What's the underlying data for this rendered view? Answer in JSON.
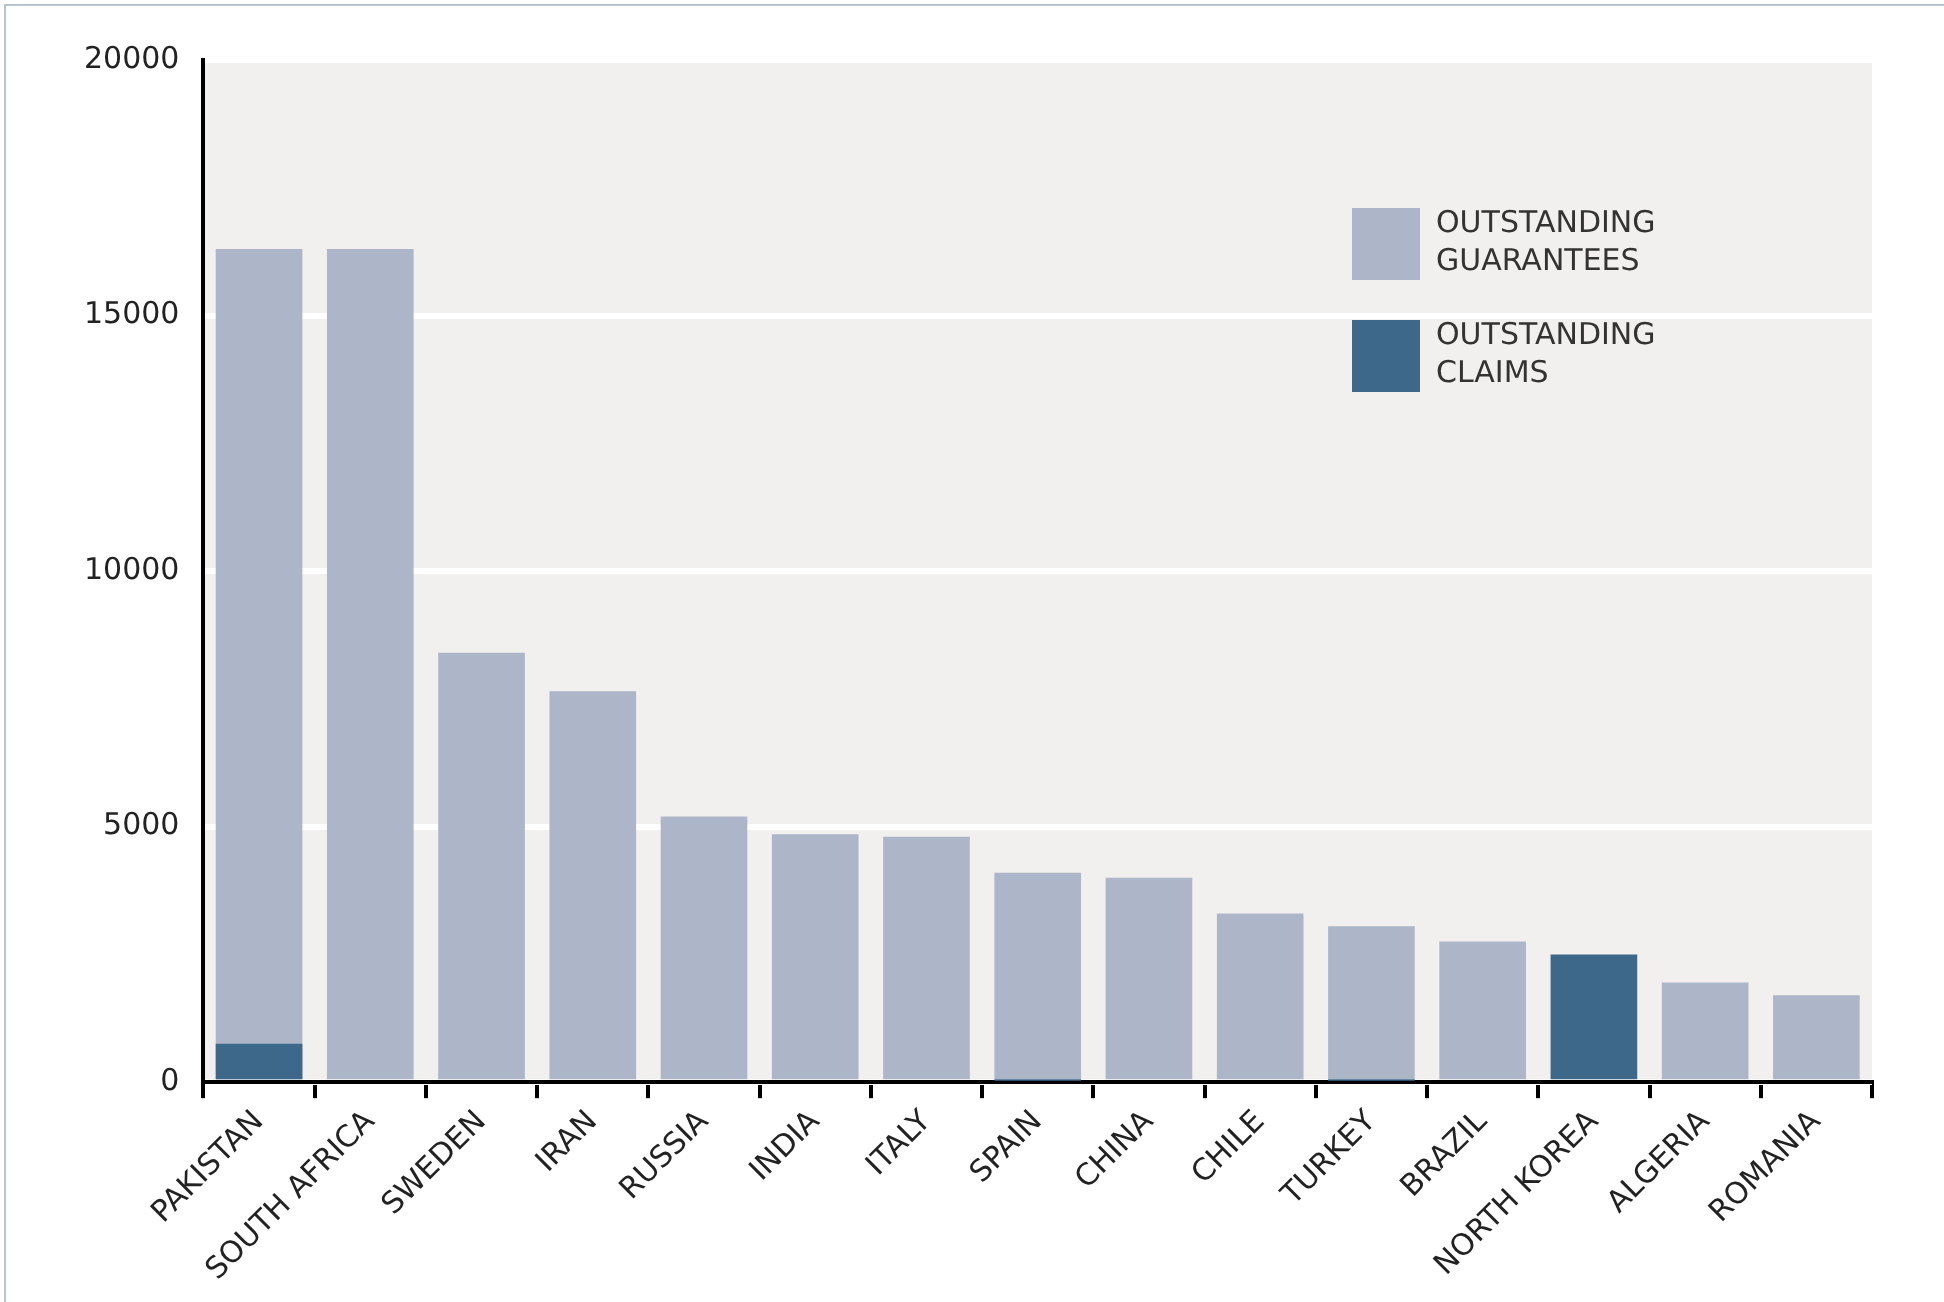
{
  "chart_data": {
    "type": "bar",
    "categories": [
      "PAKISTAN",
      "SOUTH AFRICA",
      "SWEDEN",
      "IRAN",
      "RUSSIA",
      "INDIA",
      "ITALY",
      "SPAIN",
      "CHINA",
      "CHILE",
      "TURKEY",
      "BRAZIL",
      "NORTH KOREA",
      "ALGERIA",
      "ROMANIA"
    ],
    "series": [
      {
        "name": "OUTSTANDING GUARANTEES",
        "color": "#adb5c8",
        "values": [
          16300,
          16300,
          8400,
          7650,
          5200,
          4850,
          4800,
          4100,
          4000,
          3300,
          3050,
          2750,
          null,
          1950,
          1700
        ]
      },
      {
        "name": "OUTSTANDING CLAIMS",
        "color": "#3d6889",
        "values": [
          750,
          null,
          null,
          null,
          null,
          null,
          null,
          30,
          null,
          null,
          30,
          null,
          2500,
          null,
          null
        ]
      }
    ],
    "ylim": [
      0,
      20000
    ],
    "yticks": [
      0,
      5000,
      10000,
      15000,
      20000
    ],
    "grid": "y",
    "legend": "top right"
  }
}
